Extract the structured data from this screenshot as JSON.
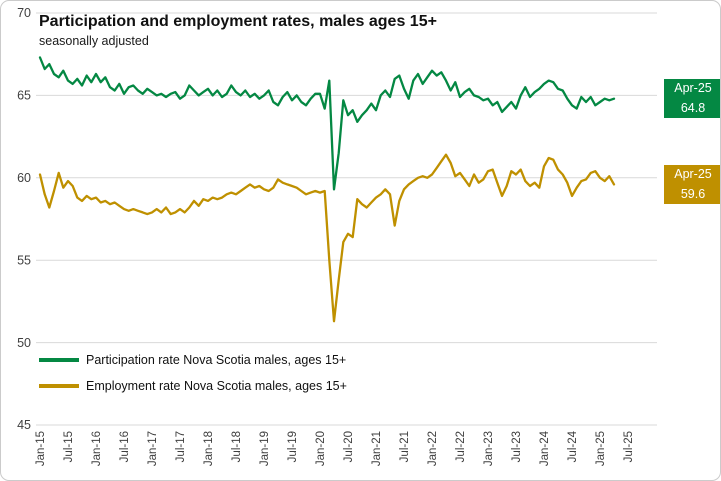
{
  "title": "Participation and employment rates, males ages 15+",
  "subtitle": "seasonally adjusted",
  "colors": {
    "participation": "#048843",
    "employment": "#BF9000",
    "gridline": "#D9D9D9",
    "axis_text": "#3F3F3F",
    "chart_border": "#CBCBCB",
    "callout_text": "#FFFFFF"
  },
  "chart_data": {
    "type": "line",
    "title": "Participation and employment rates, males ages 15+",
    "subtitle": "seasonally adjusted",
    "frequency": "monthly",
    "x_start": "Jan-2015",
    "x_end": "Apr-2025",
    "x_tick_labels": [
      "Jan-15",
      "Jul-15",
      "Jan-16",
      "Jul-16",
      "Jan-17",
      "Jul-17",
      "Jan-18",
      "Jul-18",
      "Jan-19",
      "Jul-19",
      "Jan-20",
      "Jul-20",
      "Jan-21",
      "Jul-21",
      "Jan-22",
      "Jul-22",
      "Jan-23",
      "Jul-23",
      "Jan-24",
      "Jul-24",
      "Jan-25",
      "Jul-25"
    ],
    "y_ticks": [
      70,
      65,
      60,
      55,
      50,
      45
    ],
    "ylim": [
      45,
      70
    ],
    "grid": "horizontal",
    "legend_position": "bottom-left-inside",
    "series": [
      {
        "name": "Participation rate Nova Scotia males, ages 15+",
        "color": "#048843",
        "last_label": {
          "period": "Apr-25",
          "value": "64.8"
        },
        "values": [
          67.3,
          66.6,
          66.9,
          66.3,
          66.1,
          66.5,
          65.9,
          65.7,
          66.0,
          65.6,
          66.2,
          65.8,
          66.3,
          65.8,
          66.1,
          65.5,
          65.3,
          65.7,
          65.1,
          65.5,
          65.6,
          65.3,
          65.1,
          65.4,
          65.2,
          65.0,
          65.1,
          64.9,
          65.1,
          65.2,
          64.8,
          65.0,
          65.6,
          65.3,
          65.0,
          65.2,
          65.4,
          65.0,
          65.3,
          64.9,
          65.1,
          65.6,
          65.2,
          65.0,
          65.3,
          64.9,
          65.1,
          64.8,
          65.0,
          65.3,
          64.6,
          64.4,
          64.9,
          65.2,
          64.7,
          65.0,
          64.6,
          64.4,
          64.8,
          65.1,
          65.1,
          64.2,
          65.9,
          59.3,
          61.5,
          64.7,
          63.8,
          64.1,
          63.4,
          63.8,
          64.1,
          64.5,
          64.1,
          65.0,
          65.3,
          64.9,
          66.0,
          66.2,
          65.4,
          64.8,
          65.9,
          66.3,
          65.7,
          66.1,
          66.5,
          66.2,
          66.4,
          65.9,
          65.3,
          65.8,
          64.9,
          65.2,
          65.4,
          65.0,
          64.9,
          64.7,
          64.8,
          64.4,
          64.6,
          64.0,
          64.3,
          64.6,
          64.2,
          65.0,
          65.5,
          64.9,
          65.2,
          65.4,
          65.7,
          65.9,
          65.8,
          65.4,
          65.3,
          64.8,
          64.4,
          64.2,
          64.9,
          64.6,
          64.9,
          64.4,
          64.6,
          64.8,
          64.7,
          64.8
        ]
      },
      {
        "name": "Employment rate Nova Scotia males, ages 15+",
        "color": "#BF9000",
        "last_label": {
          "period": "Apr-25",
          "value": "59.6"
        },
        "values": [
          60.2,
          59.0,
          58.2,
          59.2,
          60.3,
          59.4,
          59.8,
          59.5,
          58.8,
          58.6,
          58.9,
          58.7,
          58.8,
          58.5,
          58.6,
          58.4,
          58.5,
          58.3,
          58.1,
          58.0,
          58.1,
          58.0,
          57.9,
          57.8,
          57.9,
          58.1,
          57.9,
          58.2,
          57.8,
          57.9,
          58.1,
          57.9,
          58.2,
          58.6,
          58.3,
          58.7,
          58.6,
          58.8,
          58.7,
          58.8,
          59.0,
          59.1,
          59.0,
          59.2,
          59.4,
          59.6,
          59.4,
          59.5,
          59.3,
          59.2,
          59.4,
          59.9,
          59.7,
          59.6,
          59.5,
          59.4,
          59.2,
          59.0,
          59.1,
          59.2,
          59.1,
          59.2,
          55.0,
          51.3,
          53.8,
          56.1,
          56.6,
          56.4,
          58.7,
          58.4,
          58.2,
          58.5,
          58.8,
          59.0,
          59.3,
          59.0,
          57.1,
          58.6,
          59.3,
          59.6,
          59.8,
          60.0,
          60.1,
          60.0,
          60.2,
          60.6,
          61.0,
          61.4,
          60.9,
          60.1,
          60.3,
          59.9,
          59.5,
          60.2,
          59.7,
          59.9,
          60.4,
          60.5,
          59.7,
          58.9,
          59.5,
          60.4,
          60.2,
          60.5,
          59.8,
          59.5,
          59.7,
          59.4,
          60.7,
          61.2,
          61.1,
          60.5,
          60.2,
          59.7,
          58.9,
          59.4,
          59.8,
          59.9,
          60.3,
          60.4,
          60.0,
          59.8,
          60.1,
          59.6
        ]
      }
    ]
  }
}
